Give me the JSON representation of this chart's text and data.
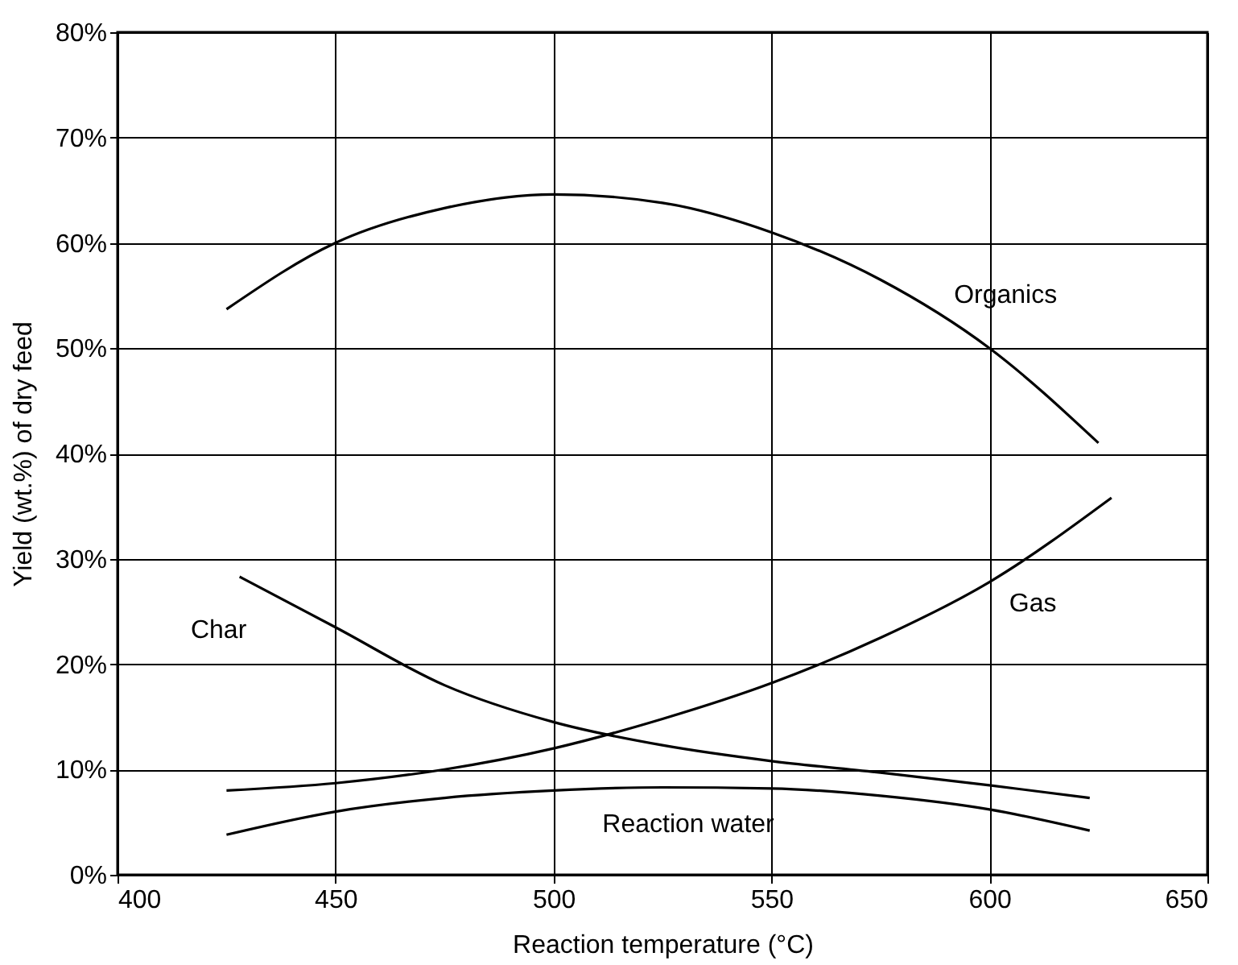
{
  "chart_data": {
    "type": "line",
    "xlabel": "Reaction temperature (°C)",
    "ylabel": "Yield (wt.%) of dry feed",
    "xlim": [
      400,
      650
    ],
    "xticks": [
      400,
      450,
      500,
      550,
      600,
      650
    ],
    "ylim": [
      0,
      80
    ],
    "yticks": [
      {
        "value": 0,
        "label": "0%"
      },
      {
        "value": 10,
        "label": "10%"
      },
      {
        "value": 20,
        "label": "20%"
      },
      {
        "value": 30,
        "label": "30%"
      },
      {
        "value": 40,
        "label": "40%"
      },
      {
        "value": 50,
        "label": "50%"
      },
      {
        "value": 60,
        "label": "60%"
      },
      {
        "value": 70,
        "label": "70%"
      },
      {
        "value": 80,
        "label": "80%"
      }
    ],
    "grid": true,
    "marker": "none",
    "line_style": "solid",
    "series": [
      {
        "name": "Organics",
        "color": "#000000",
        "x": [
          425,
          450,
          475,
          500,
          525,
          550,
          575,
          600,
          625
        ],
        "values": [
          53.7,
          60,
          63.3,
          64.6,
          63.8,
          61,
          56.5,
          50,
          41
        ]
      },
      {
        "name": "Gas",
        "color": "#000000",
        "x": [
          425,
          450,
          475,
          500,
          525,
          550,
          575,
          600,
          628
        ],
        "values": [
          8,
          8.7,
          10,
          12,
          14.8,
          18.2,
          22.5,
          27.8,
          35.8
        ]
      },
      {
        "name": "Char",
        "color": "#000000",
        "x": [
          428,
          450,
          475,
          500,
          525,
          550,
          575,
          600,
          623
        ],
        "values": [
          28.3,
          23.5,
          18,
          14.5,
          12.3,
          10.8,
          9.7,
          8.5,
          7.3
        ]
      },
      {
        "name": "Reaction water",
        "color": "#000000",
        "x": [
          425,
          450,
          475,
          500,
          525,
          550,
          575,
          600,
          623
        ],
        "values": [
          3.8,
          6,
          7.3,
          8,
          8.3,
          8.2,
          7.5,
          6.2,
          4.2
        ]
      }
    ]
  }
}
